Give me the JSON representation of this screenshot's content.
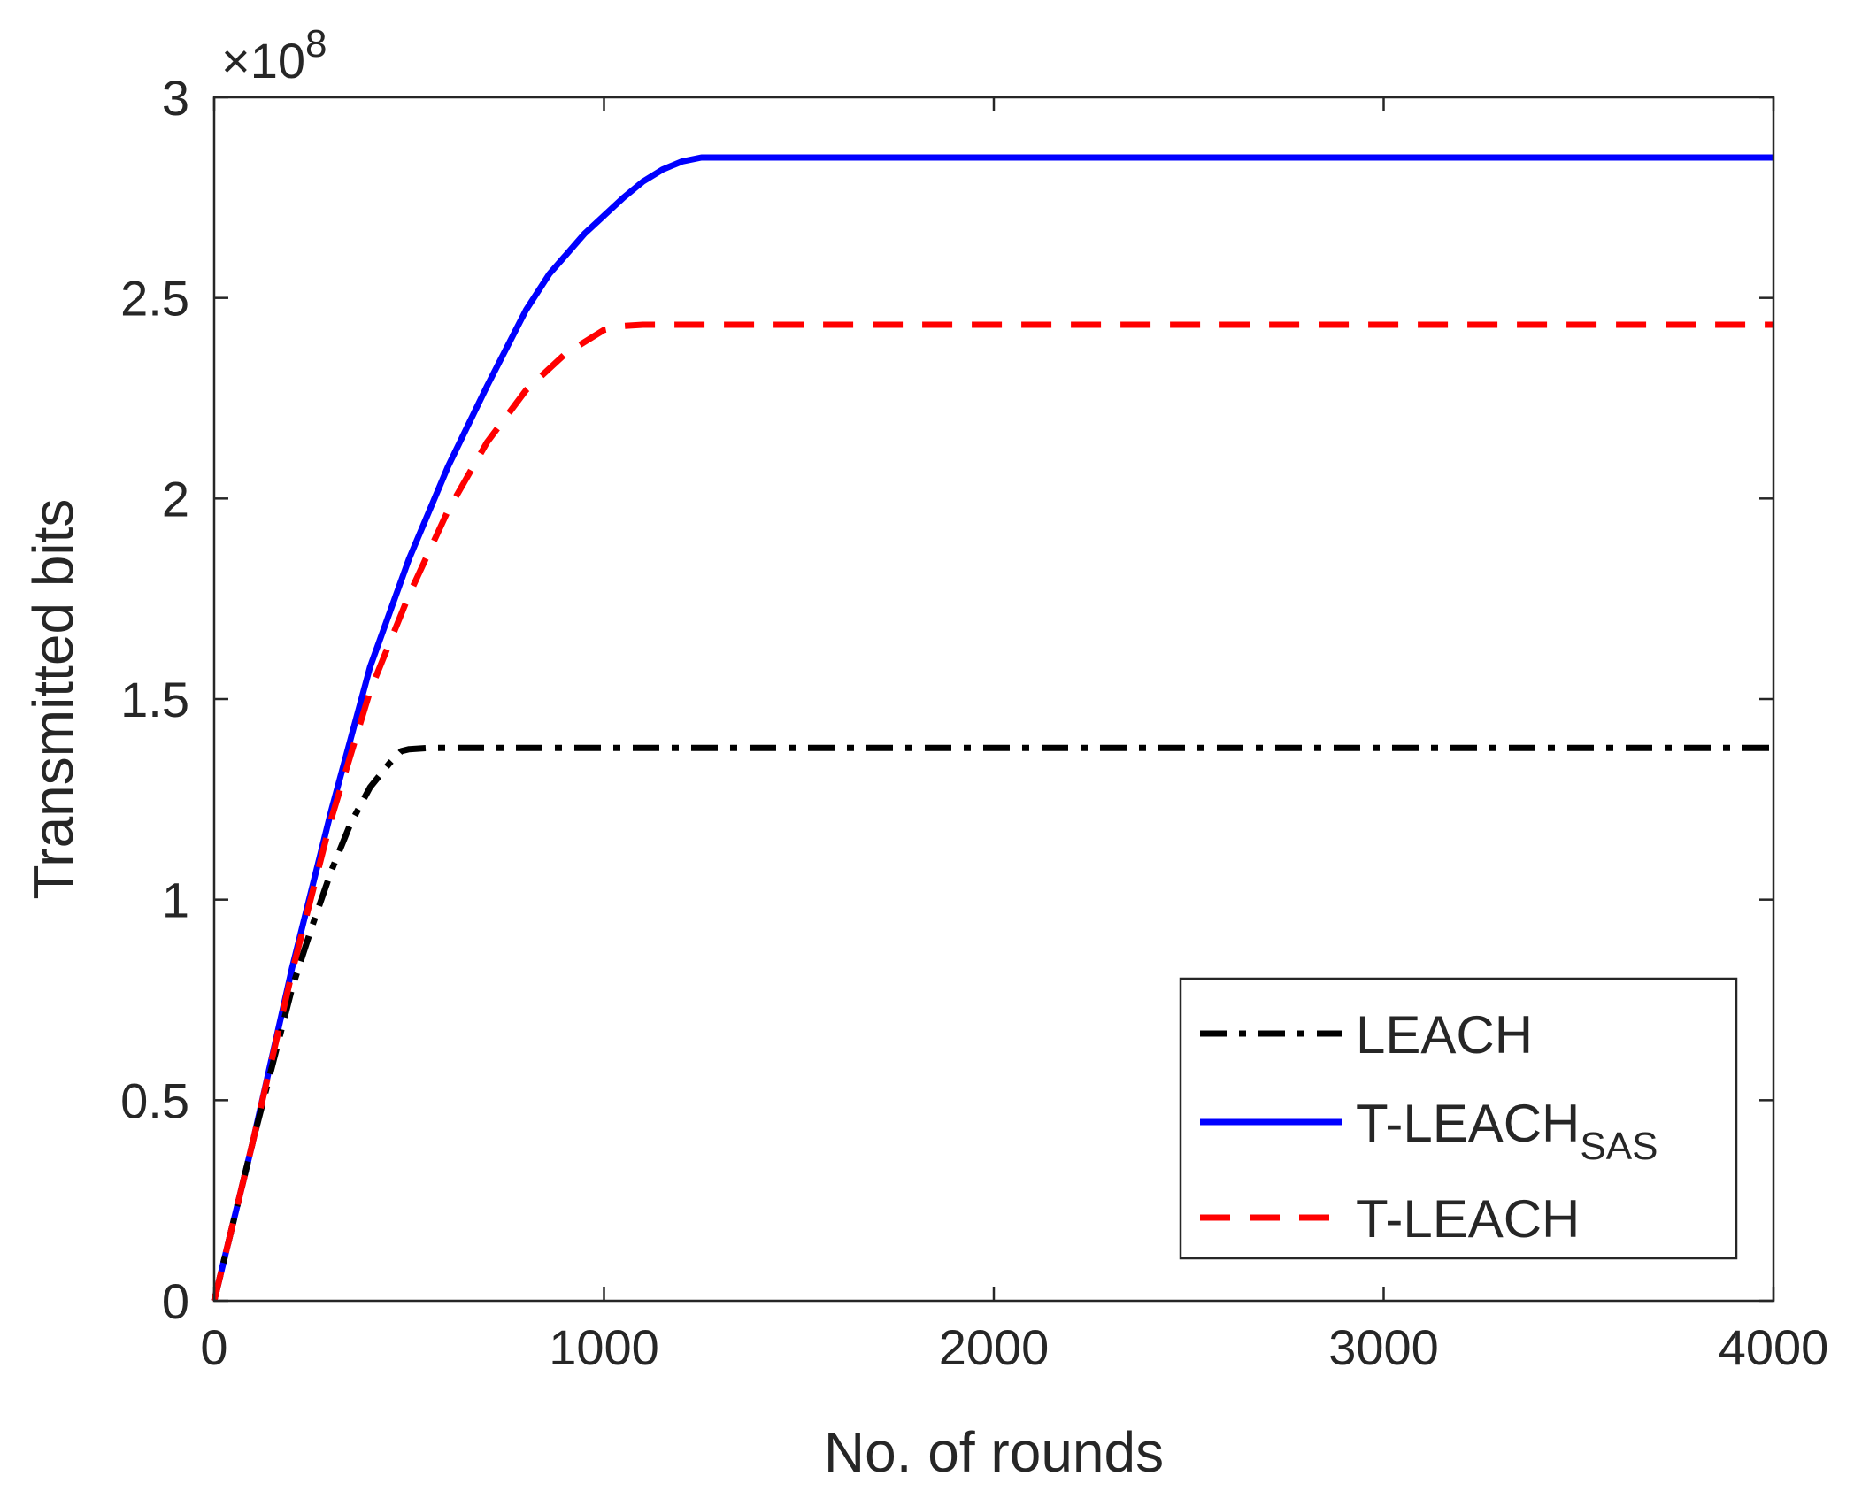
{
  "chart_data": {
    "type": "line",
    "xlabel": "No. of rounds",
    "ylabel": "Transmitted bits",
    "y_exponent_label": "×10",
    "y_exponent_power": "8",
    "xlim": [
      0,
      4000
    ],
    "ylim": [
      0,
      3
    ],
    "y_scale_factor": 100000000,
    "x_ticks": [
      0,
      1000,
      2000,
      3000,
      4000
    ],
    "x_tick_labels": [
      "0",
      "1000",
      "2000",
      "3000",
      "4000"
    ],
    "y_ticks": [
      0,
      0.5,
      1,
      1.5,
      2,
      2.5,
      3
    ],
    "y_tick_labels": [
      "0",
      "0.5",
      "1",
      "1.5",
      "2",
      "2.5",
      "3"
    ],
    "grid": false,
    "legend_position": "bottom-right",
    "series": [
      {
        "name": "LEACH",
        "name_main": "LEACH",
        "name_sub": "",
        "color": "#000000",
        "style": "dash-dot",
        "x": [
          0,
          100,
          200,
          250,
          300,
          350,
          400,
          450,
          480,
          500,
          550,
          600,
          1000,
          2000,
          3000,
          4000
        ],
        "y": [
          0,
          0.4,
          0.78,
          0.93,
          1.07,
          1.19,
          1.28,
          1.34,
          1.37,
          1.375,
          1.378,
          1.378,
          1.378,
          1.378,
          1.378,
          1.378
        ]
      },
      {
        "name": "T-LEACHSAS",
        "name_main": "T-LEACH",
        "name_sub": "SAS",
        "color": "#0000ff",
        "style": "solid",
        "x": [
          0,
          100,
          200,
          300,
          400,
          500,
          600,
          700,
          800,
          860,
          950,
          1050,
          1100,
          1150,
          1200,
          1250,
          1270,
          2000,
          3000,
          4000
        ],
        "y": [
          0,
          0.4,
          0.83,
          1.22,
          1.58,
          1.85,
          2.08,
          2.28,
          2.47,
          2.56,
          2.66,
          2.75,
          2.79,
          2.82,
          2.84,
          2.85,
          2.85,
          2.85,
          2.85,
          2.85
        ]
      },
      {
        "name": "T-LEACH",
        "name_main": "T-LEACH",
        "name_sub": "",
        "color": "#ff0000",
        "style": "dashed",
        "x": [
          0,
          100,
          200,
          300,
          400,
          500,
          600,
          700,
          800,
          900,
          1000,
          1050,
          1100,
          2000,
          3000,
          4000
        ],
        "y": [
          0,
          0.4,
          0.82,
          1.2,
          1.52,
          1.76,
          1.97,
          2.14,
          2.27,
          2.36,
          2.42,
          2.43,
          2.433,
          2.433,
          2.433,
          2.433
        ]
      }
    ]
  }
}
